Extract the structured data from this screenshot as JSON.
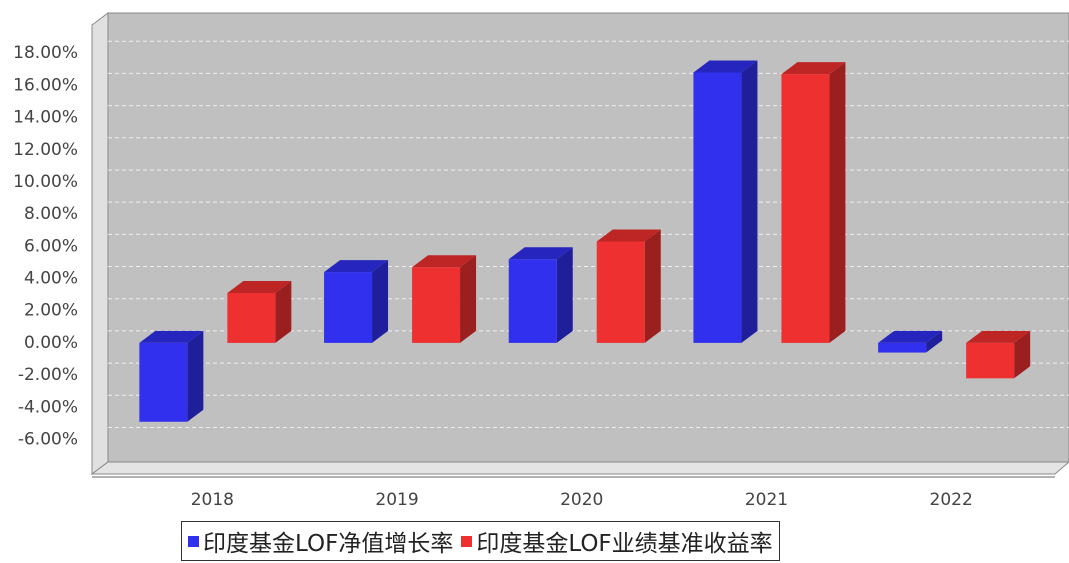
{
  "chart_data": {
    "type": "bar3d",
    "categories": [
      "2018",
      "2019",
      "2020",
      "2021",
      "2022"
    ],
    "series": [
      {
        "name": "印度基金LOF净值增长率",
        "color": "#3030ee",
        "values": [
          -4.9,
          4.4,
          5.2,
          16.8,
          -0.6
        ]
      },
      {
        "name": "印度基金LOF业绩基准收益率",
        "color": "#ee3030",
        "values": [
          3.1,
          4.7,
          6.3,
          16.7,
          -2.2
        ]
      }
    ],
    "ylim": [
      -7.4,
      20
    ],
    "yticks": [
      {
        "value": -6,
        "label": "-6.00%"
      },
      {
        "value": -4,
        "label": "-4.00%"
      },
      {
        "value": -2,
        "label": "-2.00%"
      },
      {
        "value": 0,
        "label": "0.00%"
      },
      {
        "value": 2,
        "label": "2.00%"
      },
      {
        "value": 4,
        "label": "4.00%"
      },
      {
        "value": 6,
        "label": "6.00%"
      },
      {
        "value": 8,
        "label": "8.00%"
      },
      {
        "value": 10,
        "label": "10.00%"
      },
      {
        "value": 12,
        "label": "12.00%"
      },
      {
        "value": 14,
        "label": "14.00%"
      },
      {
        "value": 16,
        "label": "16.00%"
      },
      {
        "value": 18,
        "label": "18.00%"
      }
    ],
    "grid": true
  }
}
